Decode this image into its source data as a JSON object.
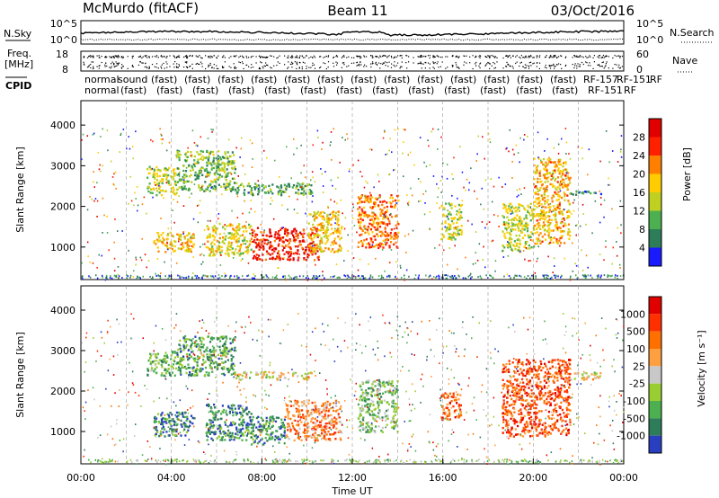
{
  "header": {
    "station": "McMurdo (fitACF)",
    "beam": "Beam 11",
    "date": "03/Oct/2016"
  },
  "top_panels": {
    "nsky_label": "N.Sky",
    "nsearch_label": "N.Search",
    "noise_ticks": [
      "10^5",
      "10^0"
    ],
    "freq_label_line1": "Freq.",
    "freq_label_line2": "[MHz]",
    "freq_ticks": [
      "18",
      "8"
    ],
    "nave_label": "Nave",
    "nave_ticks": [
      "60",
      "0"
    ],
    "cpid_label": "CPID",
    "cpid_names_row1": [
      "normal",
      "sound",
      "(fast)",
      "(fast)",
      "(fast)",
      "(fast)",
      "(fast)",
      "(fast)",
      "(fast)",
      "(fast)",
      "(fast)",
      "(fast)",
      "(fast)",
      "(fast)",
      "(fast)",
      "RF-157",
      "RF-151",
      "RF"
    ],
    "cpid_names_row2": [
      "normal",
      "(fast)",
      "(fast)",
      "(fast)",
      "(fast)",
      "(fast)",
      "(fast)",
      "(fast)",
      "(fast)",
      "(fast)",
      "(fast)",
      "(fast)",
      "(fast)",
      "(fast)",
      "RF-151",
      "RF"
    ]
  },
  "chart_data": [
    {
      "type": "heatmap",
      "title": "",
      "ylabel": "Slant Range [km]",
      "ylim": [
        200,
        4600
      ],
      "yticks": [
        "1000",
        "2000",
        "3000",
        "4000"
      ],
      "colorbar_label": "Power [dB]",
      "colorbar_ticks": [
        "28",
        "24",
        "20",
        "16",
        "12",
        "8",
        "4"
      ],
      "colors": [
        "#1a1aff",
        "#2e7d5a",
        "#4caf50",
        "#c0d020",
        "#ffcc00",
        "#ff8000",
        "#ff2000",
        "#e00000"
      ],
      "regions": [
        {
          "t0": 2.9,
          "t1": 4.2,
          "r0": 2300,
          "r1": 3000,
          "v": 0.45
        },
        {
          "t0": 4.2,
          "t1": 6.8,
          "r0": 2400,
          "r1": 3400,
          "v": 0.35
        },
        {
          "t0": 6.8,
          "t1": 10.2,
          "r0": 2300,
          "r1": 2600,
          "v": 0.3
        },
        {
          "t0": 3.2,
          "t1": 5.0,
          "r0": 900,
          "r1": 1400,
          "v": 0.55
        },
        {
          "t0": 5.5,
          "t1": 7.5,
          "r0": 800,
          "r1": 1600,
          "v": 0.5
        },
        {
          "t0": 7.5,
          "t1": 10.5,
          "r0": 700,
          "r1": 1500,
          "v": 0.85
        },
        {
          "t0": 10.0,
          "t1": 11.5,
          "r0": 900,
          "r1": 1900,
          "v": 0.55
        },
        {
          "t0": 12.2,
          "t1": 14.0,
          "r0": 1000,
          "r1": 2300,
          "v": 0.7
        },
        {
          "t0": 15.9,
          "t1": 16.8,
          "r0": 1200,
          "r1": 2100,
          "v": 0.45
        },
        {
          "t0": 18.6,
          "t1": 20.0,
          "r0": 900,
          "r1": 2100,
          "v": 0.45
        },
        {
          "t0": 20.0,
          "t1": 21.6,
          "r0": 1100,
          "r1": 3200,
          "v": 0.6
        },
        {
          "t0": 21.6,
          "t1": 23.0,
          "r0": 2300,
          "r1": 2400,
          "v": 0.15
        }
      ]
    },
    {
      "type": "heatmap",
      "title": "",
      "ylabel": "Slant Range [km]",
      "ylim": [
        200,
        4600
      ],
      "yticks": [
        "1000",
        "2000",
        "3000",
        "4000"
      ],
      "colorbar_label": "Velocity [m s⁻¹]",
      "colorbar_ticks": [
        "1000",
        "500",
        "100",
        "25",
        "-25",
        "-100",
        "-500",
        "-1000"
      ],
      "colors": [
        "#2a3fbf",
        "#2e7d5a",
        "#4caf50",
        "#9acd32",
        "#c8c8c8",
        "#ffa040",
        "#ff7000",
        "#ff3000",
        "#e00000"
      ],
      "regions": [
        {
          "t0": 2.9,
          "t1": 4.2,
          "r0": 2400,
          "r1": 3000,
          "v": 0.3
        },
        {
          "t0": 4.2,
          "t1": 6.8,
          "r0": 2400,
          "r1": 3400,
          "v": 0.25
        },
        {
          "t0": 6.8,
          "t1": 10.2,
          "r0": 2300,
          "r1": 2500,
          "v": 0.5
        },
        {
          "t0": 3.2,
          "t1": 5.0,
          "r0": 900,
          "r1": 1500,
          "v": 0.2
        },
        {
          "t0": 5.5,
          "t1": 7.5,
          "r0": 800,
          "r1": 1700,
          "v": 0.2
        },
        {
          "t0": 7.5,
          "t1": 9.0,
          "r0": 700,
          "r1": 1400,
          "v": 0.2
        },
        {
          "t0": 9.0,
          "t1": 11.5,
          "r0": 800,
          "r1": 1800,
          "v": 0.7
        },
        {
          "t0": 12.2,
          "t1": 14.0,
          "r0": 1000,
          "r1": 2300,
          "v": 0.35
        },
        {
          "t0": 15.9,
          "t1": 16.8,
          "r0": 1300,
          "r1": 2000,
          "v": 0.75
        },
        {
          "t0": 18.6,
          "t1": 21.6,
          "r0": 900,
          "r1": 2800,
          "v": 0.78
        },
        {
          "t0": 21.6,
          "t1": 23.0,
          "r0": 2300,
          "r1": 2500,
          "v": 0.5
        }
      ]
    }
  ],
  "x_axis": {
    "ticks": [
      "00:00",
      "04:00",
      "08:00",
      "12:00",
      "16:00",
      "20:00",
      "00:00"
    ],
    "label": "Time UT",
    "range_hours": [
      0,
      24
    ]
  }
}
